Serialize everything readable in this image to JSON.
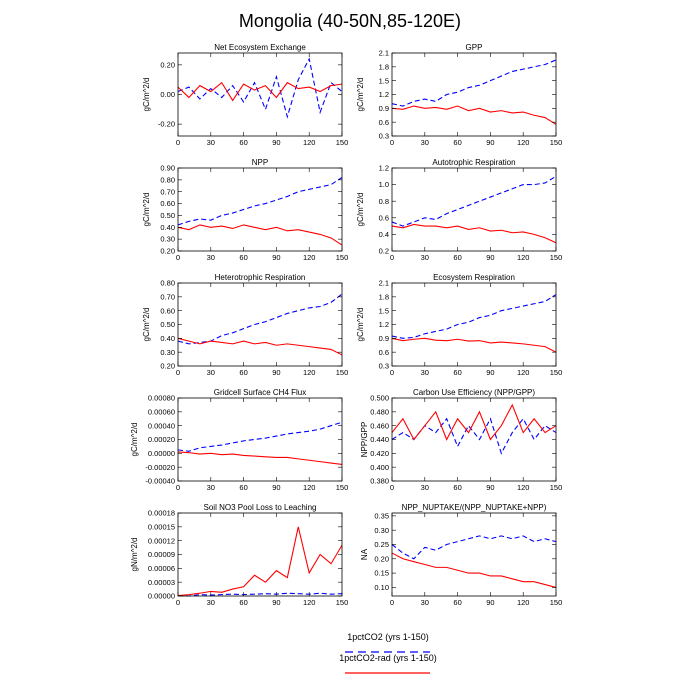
{
  "figure": {
    "title": "Mongolia (40-50N,85-120E)"
  },
  "legend": [
    {
      "label": "1pctCO2 (yrs 1-150)",
      "color": "#0000ff",
      "dash": true
    },
    {
      "label": "1pctCO2-rad (yrs 1-150)",
      "color": "#ff0000",
      "dash": false
    }
  ],
  "colors": {
    "series1": "#0000ff",
    "series2": "#ff0000"
  },
  "chart_data": [
    {
      "type": "line",
      "title": "Net Ecosystem Exchange",
      "ylabel": "gC/m^2/d",
      "xlim": [
        0,
        150
      ],
      "ylim": [
        -0.28,
        0.28
      ],
      "xticks": [
        "0",
        "30",
        "60",
        "90",
        "120",
        "150"
      ],
      "yticks": [
        "-0.20",
        "0.00",
        "0.20"
      ],
      "x": [
        0,
        10,
        20,
        30,
        40,
        50,
        60,
        70,
        80,
        90,
        100,
        110,
        120,
        130,
        140,
        150
      ],
      "series": [
        {
          "values": [
            0.02,
            0.05,
            -0.03,
            0.04,
            -0.02,
            0.06,
            -0.05,
            0.08,
            -0.1,
            0.12,
            -0.15,
            0.1,
            0.24,
            -0.12,
            0.08,
            0.02
          ]
        },
        {
          "values": [
            0.05,
            -0.02,
            0.06,
            0.02,
            0.08,
            -0.04,
            0.07,
            0.03,
            0.06,
            -0.02,
            0.08,
            0.04,
            0.05,
            0.02,
            0.06,
            0.07
          ]
        }
      ]
    },
    {
      "type": "line",
      "title": "GPP",
      "ylabel": "gC/m^2/d",
      "xlim": [
        0,
        150
      ],
      "ylim": [
        0.3,
        2.1
      ],
      "xticks": [
        "0",
        "30",
        "60",
        "90",
        "120",
        "150"
      ],
      "yticks": [
        "0.3",
        "0.6",
        "0.9",
        "1.2",
        "1.5",
        "1.8",
        "2.1"
      ],
      "x": [
        0,
        10,
        20,
        30,
        40,
        50,
        60,
        70,
        80,
        90,
        100,
        110,
        120,
        130,
        140,
        150
      ],
      "series": [
        {
          "values": [
            1.0,
            0.95,
            1.05,
            1.1,
            1.05,
            1.2,
            1.25,
            1.35,
            1.4,
            1.5,
            1.6,
            1.7,
            1.75,
            1.8,
            1.85,
            1.95
          ]
        },
        {
          "values": [
            0.9,
            0.88,
            0.95,
            0.9,
            0.92,
            0.88,
            0.95,
            0.85,
            0.9,
            0.82,
            0.85,
            0.8,
            0.82,
            0.75,
            0.7,
            0.55
          ]
        }
      ]
    },
    {
      "type": "line",
      "title": "NPP",
      "ylabel": "gC/m^2/d",
      "xlim": [
        0,
        150
      ],
      "ylim": [
        0.2,
        0.9
      ],
      "xticks": [
        "0",
        "30",
        "60",
        "90",
        "120",
        "150"
      ],
      "yticks": [
        "0.20",
        "0.30",
        "0.40",
        "0.50",
        "0.60",
        "0.70",
        "0.80",
        "0.90"
      ],
      "x": [
        0,
        10,
        20,
        30,
        40,
        50,
        60,
        70,
        80,
        90,
        100,
        110,
        120,
        130,
        140,
        150
      ],
      "series": [
        {
          "values": [
            0.42,
            0.45,
            0.47,
            0.46,
            0.5,
            0.52,
            0.55,
            0.58,
            0.6,
            0.63,
            0.66,
            0.7,
            0.72,
            0.74,
            0.76,
            0.82
          ]
        },
        {
          "values": [
            0.4,
            0.38,
            0.42,
            0.4,
            0.41,
            0.39,
            0.42,
            0.4,
            0.38,
            0.4,
            0.37,
            0.38,
            0.36,
            0.34,
            0.31,
            0.25
          ]
        }
      ]
    },
    {
      "type": "line",
      "title": "Autotrophic Respiration",
      "ylabel": "gC/m^2/d",
      "xlim": [
        0,
        150
      ],
      "ylim": [
        0.2,
        1.2
      ],
      "xticks": [
        "0",
        "30",
        "60",
        "90",
        "120",
        "150"
      ],
      "yticks": [
        "0.2",
        "0.4",
        "0.6",
        "0.8",
        "1.0",
        "1.2"
      ],
      "x": [
        0,
        10,
        20,
        30,
        40,
        50,
        60,
        70,
        80,
        90,
        100,
        110,
        120,
        130,
        140,
        150
      ],
      "series": [
        {
          "values": [
            0.55,
            0.5,
            0.55,
            0.6,
            0.58,
            0.65,
            0.7,
            0.75,
            0.8,
            0.85,
            0.9,
            0.95,
            1.0,
            1.0,
            1.02,
            1.1
          ]
        },
        {
          "values": [
            0.5,
            0.48,
            0.52,
            0.5,
            0.5,
            0.48,
            0.5,
            0.46,
            0.48,
            0.44,
            0.45,
            0.42,
            0.43,
            0.4,
            0.36,
            0.3
          ]
        }
      ]
    },
    {
      "type": "line",
      "title": "Heterotrophic Respiration",
      "ylabel": "gC/m^2/d",
      "xlim": [
        0,
        150
      ],
      "ylim": [
        0.2,
        0.8
      ],
      "xticks": [
        "0",
        "30",
        "60",
        "90",
        "120",
        "150"
      ],
      "yticks": [
        "0.20",
        "0.30",
        "0.40",
        "0.50",
        "0.60",
        "0.70",
        "0.80"
      ],
      "x": [
        0,
        10,
        20,
        30,
        40,
        50,
        60,
        70,
        80,
        90,
        100,
        110,
        120,
        130,
        140,
        150
      ],
      "series": [
        {
          "values": [
            0.38,
            0.36,
            0.37,
            0.38,
            0.42,
            0.44,
            0.47,
            0.5,
            0.52,
            0.55,
            0.58,
            0.6,
            0.62,
            0.63,
            0.66,
            0.72
          ]
        },
        {
          "values": [
            0.4,
            0.38,
            0.36,
            0.38,
            0.37,
            0.36,
            0.38,
            0.36,
            0.37,
            0.35,
            0.36,
            0.35,
            0.34,
            0.33,
            0.32,
            0.28
          ]
        }
      ]
    },
    {
      "type": "line",
      "title": "Ecosystem Respiration",
      "ylabel": "gC/m^2/d",
      "xlim": [
        0,
        150
      ],
      "ylim": [
        0.3,
        2.1
      ],
      "xticks": [
        "0",
        "30",
        "60",
        "90",
        "120",
        "150"
      ],
      "yticks": [
        "0.3",
        "0.6",
        "0.9",
        "1.2",
        "1.5",
        "1.8",
        "2.1"
      ],
      "x": [
        0,
        10,
        20,
        30,
        40,
        50,
        60,
        70,
        80,
        90,
        100,
        110,
        120,
        130,
        140,
        150
      ],
      "series": [
        {
          "values": [
            0.95,
            0.9,
            0.92,
            1.0,
            1.05,
            1.1,
            1.2,
            1.25,
            1.35,
            1.4,
            1.5,
            1.55,
            1.6,
            1.65,
            1.7,
            1.85
          ]
        },
        {
          "values": [
            0.9,
            0.85,
            0.88,
            0.9,
            0.86,
            0.85,
            0.88,
            0.84,
            0.85,
            0.8,
            0.82,
            0.8,
            0.78,
            0.75,
            0.72,
            0.6
          ]
        }
      ]
    },
    {
      "type": "line",
      "title": "Gridcell Surface CH4 Flux",
      "ylabel": "gC/m^2/d",
      "xlim": [
        0,
        150
      ],
      "ylim": [
        -0.0004,
        0.0008
      ],
      "xticks": [
        "0",
        "30",
        "60",
        "90",
        "120",
        "150"
      ],
      "yticks": [
        "-0.00040",
        "-0.00020",
        "0.00000",
        "0.00020",
        "0.00040",
        "0.00060",
        "0.00080"
      ],
      "x": [
        0,
        10,
        20,
        30,
        40,
        50,
        60,
        70,
        80,
        90,
        100,
        110,
        120,
        130,
        140,
        150
      ],
      "series": [
        {
          "values": [
            5e-05,
            3e-05,
            8e-05,
            0.0001,
            0.00012,
            0.00015,
            0.00018,
            0.0002,
            0.00022,
            0.00025,
            0.00028,
            0.0003,
            0.00032,
            0.00035,
            0.0004,
            0.00045
          ]
        },
        {
          "values": [
            2e-05,
            1e-05,
            -1e-05,
            0.0,
            -2e-05,
            -1e-05,
            -3e-05,
            -4e-05,
            -5e-05,
            -6e-05,
            -6e-05,
            -8e-05,
            -0.0001,
            -0.00012,
            -0.00014,
            -0.00016
          ]
        }
      ]
    },
    {
      "type": "line",
      "title": "Carbon Use Efficiency (NPP/GPP)",
      "ylabel": "NPP/GPP",
      "xlim": [
        0,
        150
      ],
      "ylim": [
        0.38,
        0.5
      ],
      "xticks": [
        "0",
        "30",
        "60",
        "90",
        "120",
        "150"
      ],
      "yticks": [
        "0.380",
        "0.400",
        "0.420",
        "0.440",
        "0.460",
        "0.480",
        "0.500"
      ],
      "x": [
        0,
        10,
        20,
        30,
        40,
        50,
        60,
        70,
        80,
        90,
        100,
        110,
        120,
        130,
        140,
        150
      ],
      "series": [
        {
          "values": [
            0.44,
            0.45,
            0.44,
            0.46,
            0.45,
            0.47,
            0.43,
            0.46,
            0.44,
            0.47,
            0.42,
            0.45,
            0.47,
            0.44,
            0.46,
            0.45
          ]
        },
        {
          "values": [
            0.45,
            0.47,
            0.44,
            0.46,
            0.48,
            0.44,
            0.47,
            0.45,
            0.48,
            0.44,
            0.46,
            0.49,
            0.45,
            0.47,
            0.45,
            0.46
          ]
        }
      ]
    },
    {
      "type": "line",
      "title": "Soil NO3 Pool Loss to Leaching",
      "ylabel": "gN/m^2/d",
      "xlim": [
        0,
        150
      ],
      "ylim": [
        0,
        0.00018
      ],
      "xticks": [
        "0",
        "30",
        "60",
        "90",
        "120",
        "150"
      ],
      "yticks": [
        "0.00000",
        "0.00003",
        "0.00006",
        "0.00009",
        "0.00012",
        "0.00015",
        "0.00018"
      ],
      "x": [
        0,
        10,
        20,
        30,
        40,
        50,
        60,
        70,
        80,
        90,
        100,
        110,
        120,
        130,
        140,
        150
      ],
      "series": [
        {
          "values": [
            0.0,
            0.0,
            3e-06,
            2e-06,
            3e-06,
            4e-06,
            3e-06,
            4e-06,
            5e-06,
            4e-06,
            6e-06,
            5e-06,
            4e-06,
            6e-06,
            4e-06,
            5e-06
          ]
        },
        {
          "values": [
            1e-06,
            3e-06,
            6e-06,
            1e-05,
            8e-06,
            1.5e-05,
            2e-05,
            4.5e-05,
            3e-05,
            5.5e-05,
            4e-05,
            0.00015,
            5e-05,
            9e-05,
            7e-05,
            0.00011
          ]
        }
      ]
    },
    {
      "type": "line",
      "title": "NPP_NUPTAKE/(NPP_NUPTAKE+NPP)",
      "ylabel": "NA",
      "xlim": [
        0,
        150
      ],
      "ylim": [
        0.07,
        0.36
      ],
      "xticks": [
        "0",
        "30",
        "60",
        "90",
        "120",
        "150"
      ],
      "yticks": [
        "0.10",
        "0.15",
        "0.20",
        "0.25",
        "0.30",
        "0.35"
      ],
      "x": [
        0,
        10,
        20,
        30,
        40,
        50,
        60,
        70,
        80,
        90,
        100,
        110,
        120,
        130,
        140,
        150
      ],
      "series": [
        {
          "values": [
            0.25,
            0.22,
            0.2,
            0.24,
            0.23,
            0.25,
            0.26,
            0.27,
            0.28,
            0.27,
            0.28,
            0.27,
            0.28,
            0.26,
            0.27,
            0.26
          ]
        },
        {
          "values": [
            0.22,
            0.2,
            0.19,
            0.18,
            0.17,
            0.17,
            0.16,
            0.15,
            0.15,
            0.14,
            0.14,
            0.13,
            0.12,
            0.12,
            0.11,
            0.1
          ]
        }
      ]
    }
  ]
}
